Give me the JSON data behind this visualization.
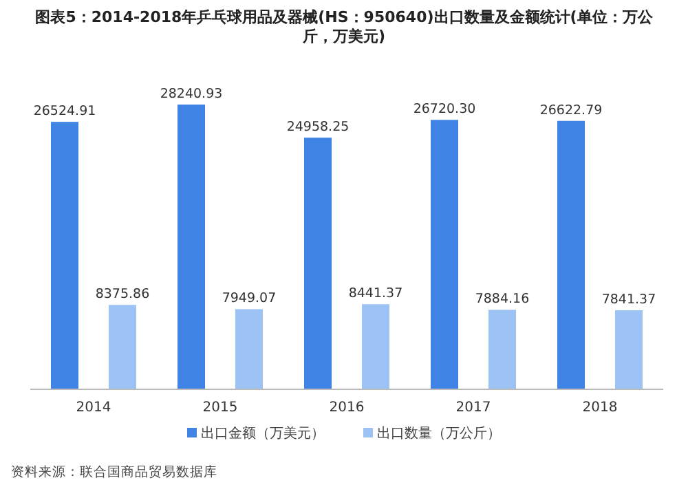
{
  "chart_data": {
    "type": "bar",
    "title": "图表5：2014-2018年乒乓球用品及器械(HS：950640)出口数量及金额统计(单位：万公斤，万美元)",
    "categories": [
      "2014",
      "2015",
      "2016",
      "2017",
      "2018"
    ],
    "series": [
      {
        "name": "出口金额（万美元）",
        "color": "#3f84e5",
        "values": [
          26524.91,
          28240.93,
          24958.25,
          26720.3,
          26622.79
        ],
        "value_labels": [
          "26524.91",
          "28240.93",
          "24958.25",
          "26720.30",
          "26622.79"
        ]
      },
      {
        "name": "出口数量（万公斤）",
        "color": "#9dc3f5",
        "values": [
          8375.86,
          7949.07,
          8441.37,
          7884.16,
          7841.37
        ],
        "value_labels": [
          "8375.86",
          "7949.07",
          "8441.37",
          "7884.16",
          "7841.37"
        ]
      }
    ],
    "legend": "bottom",
    "annotations": [
      "资料来源：联合国商品贸易数据库"
    ]
  }
}
